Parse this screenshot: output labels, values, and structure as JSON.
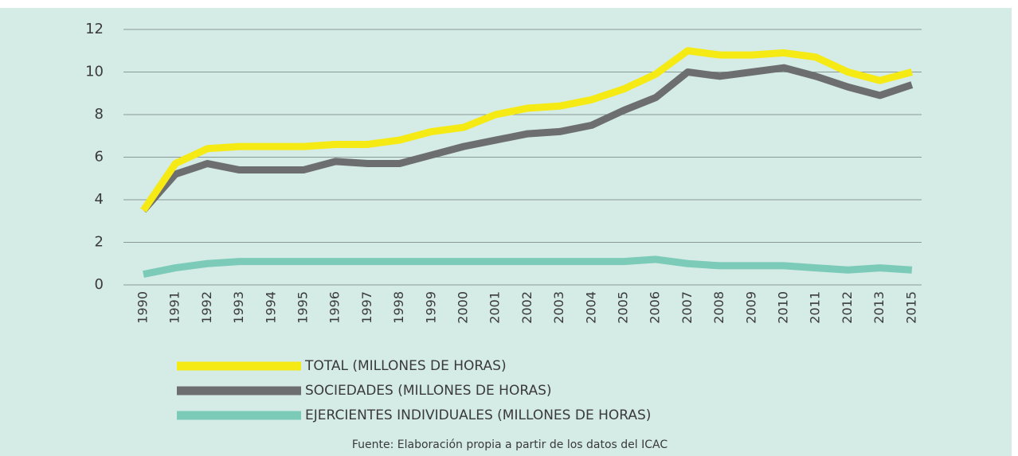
{
  "chart_data": {
    "type": "line",
    "categories": [
      "1990",
      "1991",
      "1992",
      "1993",
      "1994",
      "1995",
      "1996",
      "1997",
      "1998",
      "1999",
      "2000",
      "2001",
      "2002",
      "2003",
      "2004",
      "2005",
      "2006",
      "2007",
      "2008",
      "2009",
      "2010",
      "2011",
      "2012",
      "2013",
      "2015"
    ],
    "series": [
      {
        "name": "TOTAL (MILLONES DE HORAS)",
        "color": "#f5ea14",
        "values": [
          3.5,
          5.7,
          6.4,
          6.5,
          6.5,
          6.5,
          6.6,
          6.6,
          6.8,
          7.2,
          7.4,
          8.0,
          8.3,
          8.4,
          8.7,
          9.2,
          9.9,
          11.0,
          10.8,
          10.8,
          10.9,
          10.7,
          10.0,
          9.6,
          10.0
        ]
      },
      {
        "name": "SOCIEDADES (MILLONES DE HORAS)",
        "color": "#6d6e70",
        "values": [
          3.5,
          5.2,
          5.7,
          5.4,
          5.4,
          5.4,
          5.8,
          5.7,
          5.7,
          6.1,
          6.5,
          6.8,
          7.1,
          7.2,
          7.5,
          8.2,
          8.8,
          10.0,
          9.8,
          10.0,
          10.2,
          9.8,
          9.3,
          8.9,
          9.4
        ]
      },
      {
        "name": "EJERCIENTES INDIVIDUALES (MILLONES DE HORAS)",
        "color": "#7ccbb9",
        "values": [
          0.5,
          0.8,
          1.0,
          1.1,
          1.1,
          1.1,
          1.1,
          1.1,
          1.1,
          1.1,
          1.1,
          1.1,
          1.1,
          1.1,
          1.1,
          1.1,
          1.2,
          1.0,
          0.9,
          0.9,
          0.9,
          0.8,
          0.7,
          0.8,
          0.7
        ]
      }
    ],
    "ylim": [
      0,
      12
    ],
    "yticks": [
      0,
      2,
      4,
      6,
      8,
      10,
      12
    ],
    "grid": true,
    "source": "Fuente: Elaboración propia a partir de los datos del ICAC"
  }
}
